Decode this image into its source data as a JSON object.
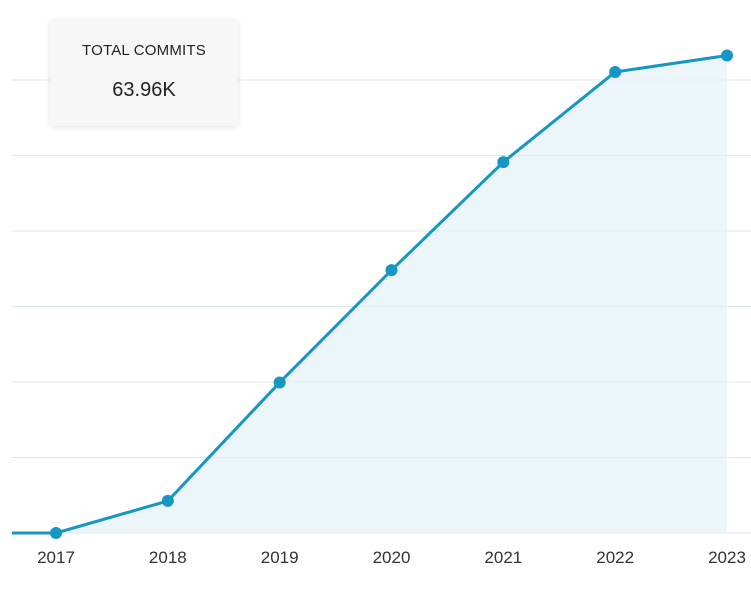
{
  "tooltip": {
    "title": "TOTAL COMMITS",
    "value": "63.96K"
  },
  "colors": {
    "line": "#1596c4",
    "area": "#e6f1f7",
    "grid": "#dde7ee"
  },
  "chart_data": {
    "type": "area",
    "title": "",
    "xlabel": "",
    "ylabel": "",
    "grid": true,
    "x": [
      "2017",
      "2018",
      "2019",
      "2020",
      "2021",
      "2022",
      "2023"
    ],
    "series": [
      {
        "values": [
          0,
          6.8,
          31.9,
          55.7,
          78.6,
          97.7,
          101.2
        ]
      }
    ],
    "ylim": [
      0,
      105
    ],
    "yticks": [
      0,
      16,
      32,
      48,
      64,
      80,
      96
    ]
  }
}
